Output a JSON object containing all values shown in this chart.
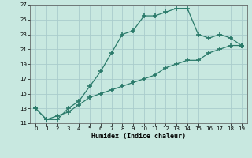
{
  "xlabel": "Humidex (Indice chaleur)",
  "line1_x": [
    0,
    1,
    2,
    3,
    4,
    5,
    6,
    7,
    8,
    9,
    10,
    11,
    12,
    13,
    14,
    15,
    16,
    17,
    18,
    19
  ],
  "line1_y": [
    13.0,
    11.5,
    11.5,
    13.0,
    14.0,
    16.0,
    18.0,
    20.5,
    23.0,
    23.5,
    25.5,
    25.5,
    26.0,
    26.5,
    26.5,
    23.0,
    22.5,
    23.0,
    22.5,
    21.5
  ],
  "line2_x": [
    0,
    1,
    2,
    3,
    4,
    5,
    6,
    7,
    8,
    9,
    10,
    11,
    12,
    13,
    14,
    15,
    16,
    17,
    18,
    19
  ],
  "line2_y": [
    13.0,
    11.5,
    12.0,
    12.5,
    13.5,
    14.5,
    15.0,
    15.5,
    16.0,
    16.5,
    17.0,
    17.5,
    18.5,
    19.0,
    19.5,
    19.5,
    20.5,
    21.0,
    21.5,
    21.5
  ],
  "line_color": "#2a7a6a",
  "bg_color": "#c8e8e0",
  "grid_color": "#b0d8d0",
  "ylim": [
    11,
    27
  ],
  "xlim": [
    -0.5,
    19.5
  ],
  "yticks": [
    11,
    13,
    15,
    17,
    19,
    21,
    23,
    25,
    27
  ],
  "xticks": [
    0,
    1,
    2,
    3,
    4,
    5,
    6,
    7,
    8,
    9,
    10,
    11,
    12,
    13,
    14,
    15,
    16,
    17,
    18,
    19
  ]
}
